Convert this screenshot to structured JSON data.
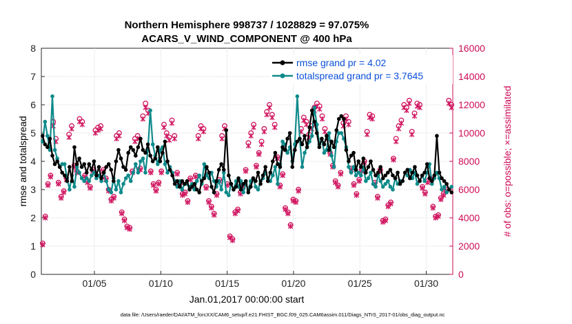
{
  "chart_data": {
    "type": "line",
    "title_line1": "Northern Hemisphere 998737 / 1028829 = 97.075%",
    "title_line2": "ACARS_V_WIND_COMPONENT @ 400 hPa",
    "xlabel": "Jan.01,2017 00:00:00 start",
    "ylabel_left": "rmse and totalspread",
    "ylabel_right": "# of obs: o=possible; ×=assimilated",
    "xlim": [
      1,
      32
    ],
    "ylim_left": [
      0,
      8
    ],
    "ylim_right": [
      0,
      16000
    ],
    "x_ticks": [
      5,
      10,
      15,
      20,
      25,
      30
    ],
    "x_tick_labels": [
      "01/05",
      "01/10",
      "01/15",
      "01/20",
      "01/25",
      "01/30"
    ],
    "y_ticks_left": [
      "0",
      "1",
      "2",
      "3",
      "4",
      "5",
      "6",
      "7",
      "8"
    ],
    "y_ticks_right": [
      "0",
      "2000",
      "4000",
      "6000",
      "8000",
      "10000",
      "12000",
      "14000",
      "16000"
    ],
    "colors": {
      "rmse": "#000000",
      "spread": "#0e8a8a",
      "obs": "#d01660",
      "legend_text": "#0a4fd8"
    },
    "series": [
      {
        "name": "rmse grand pr = 4.02",
        "axis": "left",
        "values": [
          4.9,
          4.6,
          4.5,
          4.8,
          4.2,
          3.9,
          4.0,
          3.8,
          3.6,
          3.5,
          3.3,
          3.8,
          3.3,
          4.5,
          3.9,
          4.1,
          3.8,
          3.9,
          3.6,
          3.9,
          3.7,
          4.0,
          3.5,
          3.8,
          3.4,
          3.6,
          3.8,
          3.9,
          3.7,
          3.3,
          4.0,
          4.4,
          4.1,
          3.8,
          3.7,
          4.3,
          4.5,
          4.4,
          4.2,
          4.5,
          4.8,
          4.4,
          4.3,
          4.6,
          4.2,
          4.0,
          4.1,
          4.5,
          4.0,
          4.3,
          4.7,
          4.0,
          3.7,
          3.5,
          3.2,
          3.3,
          3.1,
          3.3,
          3.2,
          3.3,
          3.0,
          3.1,
          3.2,
          3.0,
          2.9,
          3.3,
          3.4,
          3.8,
          3.6,
          3.1,
          2.9,
          3.3,
          3.7,
          3.9,
          3.7,
          5.1,
          3.5,
          3.2,
          3.0,
          3.1,
          3.4,
          3.0,
          3.2,
          3.3,
          2.9,
          3.1,
          3.4,
          3.3,
          3.6,
          3.2,
          3.5,
          3.8,
          3.3,
          3.6,
          4.0,
          4.3,
          3.9,
          3.8,
          4.5,
          4.4,
          4.8,
          5.0,
          3.8,
          4.4,
          4.7,
          4.8,
          4.6,
          4.9,
          4.5,
          5.2,
          5.8,
          5.4,
          5.0,
          4.5,
          4.8,
          4.6,
          4.9,
          4.4,
          4.7,
          4.5,
          5.1,
          5.5,
          5.6,
          5.5,
          4.4,
          4.0,
          4.2,
          4.3,
          3.7,
          4.0,
          3.8,
          4.1,
          3.6,
          3.8,
          4.0,
          3.7,
          3.5,
          3.6,
          3.8,
          3.4,
          3.5,
          3.6,
          3.7,
          3.5,
          3.4,
          3.6,
          3.2,
          3.3,
          3.6,
          3.7,
          3.4,
          3.6,
          3.8,
          3.5,
          3.3,
          3.5,
          3.6,
          3.9,
          3.4,
          3.3,
          3.5,
          4.9,
          3.6,
          3.4,
          3.3,
          3.2,
          3.0,
          2.9
        ]
      },
      {
        "name": "totalspread grand pr = 3.7645",
        "axis": "left",
        "values": [
          4.7,
          5.4,
          4.9,
          4.4,
          6.3,
          4.4,
          4.1,
          3.8,
          3.9,
          3.9,
          3.4,
          3.0,
          3.5,
          3.1,
          3.8,
          3.6,
          3.4,
          3.3,
          3.4,
          3.3,
          3.5,
          3.6,
          3.4,
          3.5,
          3.3,
          3.6,
          3.3,
          3.0,
          2.9,
          3.4,
          3.0,
          3.3,
          2.9,
          3.2,
          3.4,
          3.5,
          3.3,
          3.6,
          3.9,
          3.6,
          4.0,
          4.1,
          3.6,
          4.4,
          5.8,
          4.6,
          4.2,
          3.9,
          4.4,
          4.5,
          3.9,
          3.6,
          3.8,
          3.6,
          3.3,
          3.1,
          3.3,
          3.0,
          3.2,
          3.2,
          3.1,
          3.2,
          3.0,
          3.3,
          3.5,
          3.2,
          3.9,
          3.5,
          3.4,
          3.6,
          3.3,
          3.1,
          3.3,
          3.0,
          3.6,
          2.9,
          2.8,
          3.2,
          3.0,
          3.3,
          3.1,
          3.3,
          2.9,
          3.2,
          3.0,
          3.3,
          3.4,
          3.1,
          3.0,
          3.3,
          3.4,
          3.6,
          3.4,
          3.3,
          3.5,
          3.8,
          3.2,
          3.9,
          4.7,
          4.6,
          4.3,
          4.5,
          4.0,
          4.6,
          6.3,
          4.8,
          3.8,
          4.3,
          4.5,
          4.7,
          4.9,
          5.9,
          5.3,
          4.6,
          4.8,
          4.3,
          4.4,
          5.0,
          4.2,
          3.8,
          4.7,
          5.0,
          5.0,
          4.8,
          4.5,
          3.8,
          3.6,
          3.8,
          3.5,
          3.6,
          3.5,
          3.8,
          3.3,
          3.4,
          3.6,
          3.2,
          3.1,
          3.5,
          3.3,
          3.1,
          3.2,
          3.3,
          3.1,
          3.0,
          3.4,
          3.2,
          3.3,
          3.3,
          3.6,
          3.5,
          3.7,
          3.4,
          3.6,
          3.2,
          3.3,
          3.5,
          3.3,
          3.6,
          3.9,
          3.2,
          3.4,
          3.6,
          3.4,
          3.0,
          3.1,
          2.9,
          3.0,
          3.1
        ]
      },
      {
        "name": "obs possible",
        "axis": "right",
        "marker": "o",
        "values": [
          2200,
          4100,
          6400,
          7000,
          10800,
          9600,
          6500,
          5500,
          5900,
          6800,
          9900,
          10500,
          7700,
          7300,
          11000,
          10800,
          7000,
          6600,
          6200,
          7400,
          10200,
          10400,
          10500,
          7400,
          6800,
          6000,
          5300,
          5500,
          9800,
          10000,
          4400,
          3900,
          3400,
          3300,
          7300,
          9600,
          9800,
          7500,
          11200,
          12100,
          11600,
          7300,
          6400,
          6000,
          6500,
          7300,
          10600,
          10000,
          9700,
          10900,
          9800,
          7200,
          6400,
          5700,
          5800,
          5200,
          6800,
          6300,
          7000,
          9800,
          10500,
          10300,
          6200,
          5200,
          4800,
          4300,
          5700,
          6700,
          9800,
          10500,
          6400,
          2700,
          2500,
          4400,
          4600,
          5800,
          6300,
          7400,
          9300,
          10000,
          10600,
          7700,
          8600,
          9400,
          10300,
          11500,
          12000,
          11300,
          10600,
          8300,
          6300,
          7100,
          4700,
          4400,
          3500,
          5300,
          5200,
          6000,
          10300,
          11100,
          10800,
          9900,
          10500,
          11800,
          12100,
          11900,
          11200,
          10300,
          9800,
          8600,
          7700,
          6600,
          6300,
          7200,
          10700,
          11200,
          10800,
          7500,
          6400,
          5700,
          6700,
          7400,
          8000,
          10100,
          11300,
          11200,
          6500,
          5500,
          7400,
          3800,
          3900,
          4900,
          5100,
          8200,
          9600,
          10500,
          10900,
          12000,
          11800,
          12300,
          10100,
          11400,
          12100,
          12000,
          6200,
          5800,
          6600,
          6800,
          4800,
          4100,
          4200,
          5400,
          5700,
          6000,
          12300,
          12000
        ]
      },
      {
        "name": "obs assimilated",
        "axis": "right",
        "marker": "x",
        "values": [
          2100,
          4000,
          6300,
          6900,
          10500,
          9400,
          6400,
          5400,
          5800,
          6700,
          9700,
          10300,
          7600,
          7200,
          10800,
          10600,
          6900,
          6500,
          6100,
          7300,
          10000,
          10200,
          10300,
          7300,
          6700,
          5900,
          5200,
          5400,
          9600,
          9800,
          4300,
          3800,
          3300,
          3200,
          7200,
          9400,
          9600,
          7400,
          11000,
          11800,
          11400,
          7200,
          6300,
          5900,
          6400,
          7200,
          10400,
          9800,
          9500,
          10700,
          9600,
          7100,
          6300,
          5600,
          5700,
          5100,
          6700,
          6200,
          6900,
          9600,
          10300,
          10100,
          6100,
          5100,
          4700,
          4200,
          5600,
          6600,
          9600,
          10300,
          6300,
          2600,
          2400,
          4300,
          4500,
          5700,
          6200,
          7300,
          9100,
          9800,
          10400,
          7600,
          8500,
          9200,
          10100,
          11300,
          11800,
          11100,
          10400,
          8200,
          6200,
          7000,
          4600,
          4300,
          3400,
          5200,
          5100,
          5900,
          10100,
          10900,
          10600,
          9700,
          10300,
          11600,
          11900,
          11700,
          11000,
          10100,
          9600,
          8500,
          7600,
          6500,
          6200,
          7100,
          10500,
          11000,
          10600,
          7400,
          6300,
          5600,
          6600,
          7300,
          7900,
          9900,
          11100,
          11000,
          6400,
          5400,
          7300,
          3700,
          3800,
          4800,
          5000,
          8100,
          9400,
          10300,
          10700,
          11800,
          11600,
          12100,
          9900,
          11200,
          11900,
          11800,
          6100,
          5700,
          6500,
          6700,
          4700,
          4000,
          4100,
          5300,
          5600,
          5900,
          12100,
          11800
        ]
      }
    ]
  },
  "footer_text": "data file: /Users/raeder/DAI/ATM_forcXX/CAM6_setup/f.e21.FHIST_BGC.f09_025.CAM6assim.011/Diags_NTrS_2017-01/obs_diag_output.nc"
}
